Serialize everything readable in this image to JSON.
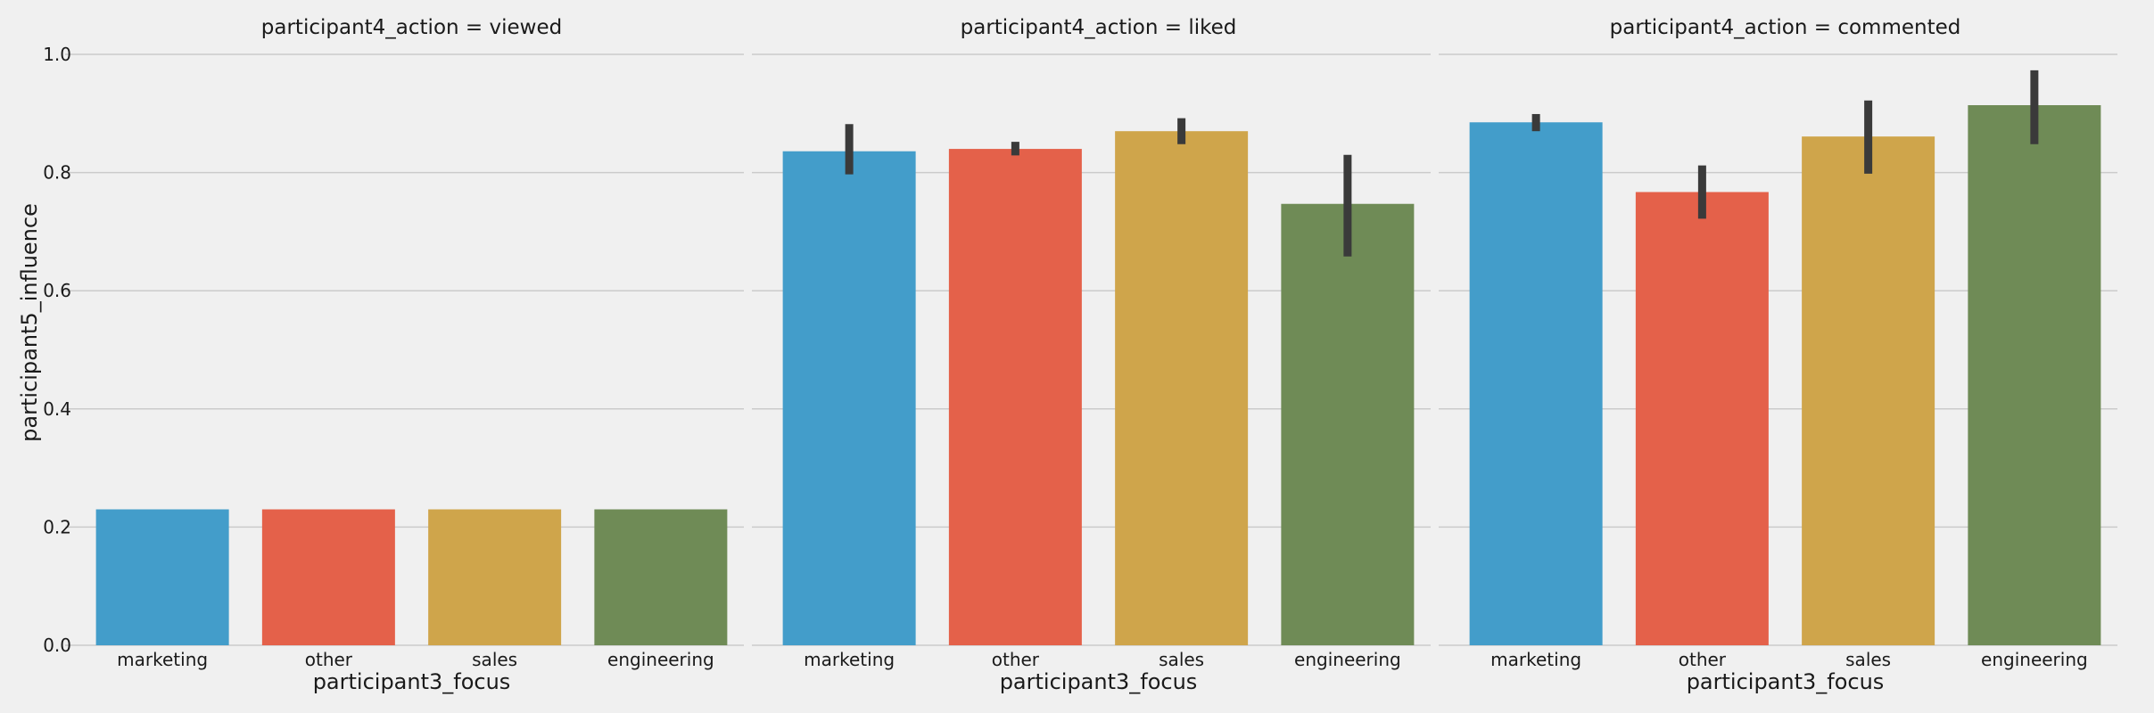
{
  "chart_data": {
    "type": "bar",
    "ylabel": "participant5_influence",
    "xlabel": "participant3_focus",
    "ylim": [
      0,
      1.0
    ],
    "yticks": [
      "0.0",
      "0.2",
      "0.4",
      "0.6",
      "0.8",
      "1.0"
    ],
    "grid": true,
    "categories": [
      "marketing",
      "other",
      "sales",
      "engineering"
    ],
    "colors": [
      "#439dca",
      "#e4614a",
      "#cfa54b",
      "#6f8b56"
    ],
    "errorbar_color": "#3a3a3a",
    "panels": [
      {
        "title": "participant4_action = viewed",
        "values": [
          0.23,
          0.23,
          0.23,
          0.23
        ],
        "errors": [
          null,
          null,
          null,
          null
        ]
      },
      {
        "title": "participant4_action = liked",
        "values": [
          0.836,
          0.84,
          0.87,
          0.747
        ],
        "errors": [
          [
            0.797,
            0.882
          ],
          [
            0.829,
            0.852
          ],
          [
            0.848,
            0.892
          ],
          [
            0.658,
            0.83
          ]
        ]
      },
      {
        "title": "participant4_action = commented",
        "values": [
          0.885,
          0.767,
          0.861,
          0.914
        ],
        "errors": [
          [
            0.87,
            0.899
          ],
          [
            0.722,
            0.812
          ],
          [
            0.798,
            0.922
          ],
          [
            0.848,
            0.973
          ]
        ]
      }
    ]
  }
}
